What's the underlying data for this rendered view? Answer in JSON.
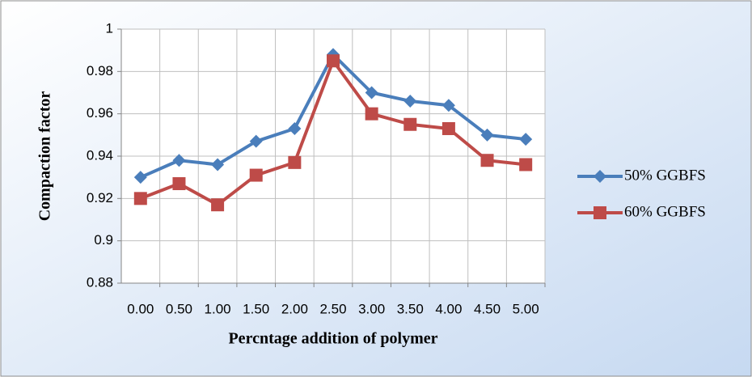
{
  "chart_data": {
    "type": "line",
    "x_label": "Percntage addition of polymer",
    "y_label": "Compaction factor",
    "categories": [
      "0.00",
      "0.50",
      "1.00",
      "1.50",
      "2.00",
      "2.50",
      "3.00",
      "3.50",
      "4.00",
      "4.50",
      "5.00"
    ],
    "series": [
      {
        "name": "50% GGBFS",
        "color": "#4a7ebb",
        "marker": "diamond",
        "values": [
          0.93,
          0.938,
          0.936,
          0.947,
          0.953,
          0.988,
          0.97,
          0.966,
          0.964,
          0.95,
          0.948
        ]
      },
      {
        "name": "60% GGBFS",
        "color": "#be4b48",
        "marker": "square",
        "values": [
          0.92,
          0.927,
          0.917,
          0.931,
          0.937,
          0.985,
          0.96,
          0.955,
          0.953,
          0.938,
          0.936
        ]
      }
    ],
    "ylim": [
      0.88,
      1
    ],
    "yticks": [
      0.88,
      0.9,
      0.92,
      0.94,
      0.96,
      0.98,
      1
    ],
    "grid": true,
    "legend": "right"
  }
}
